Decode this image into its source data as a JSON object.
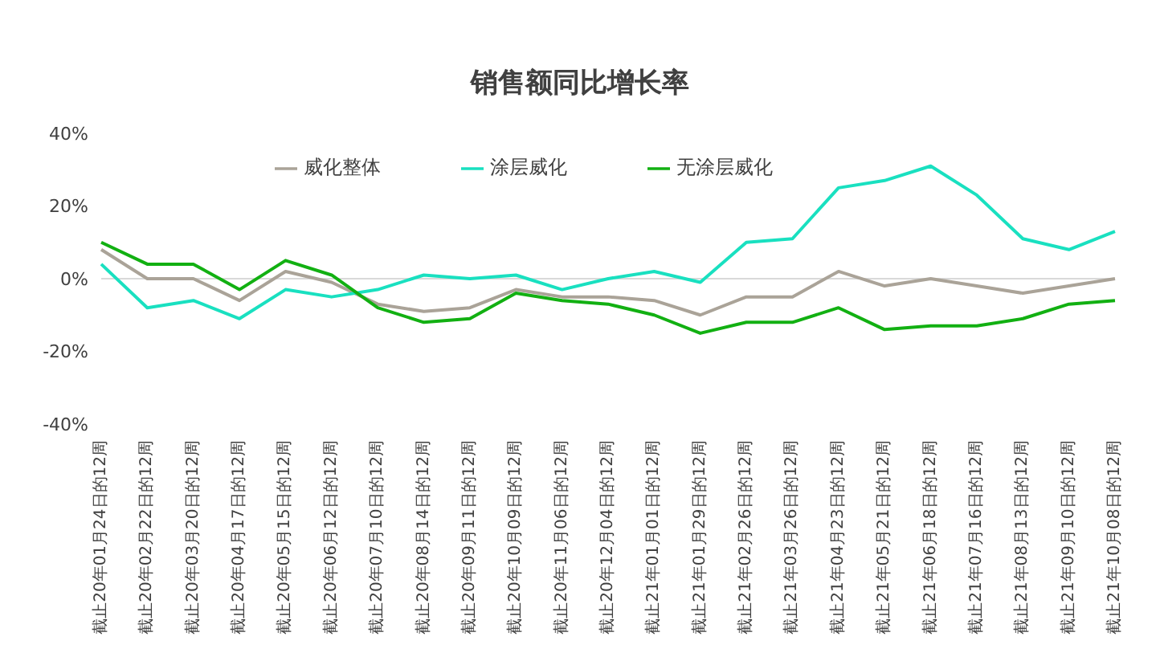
{
  "chart_data": {
    "type": "line",
    "title": "销售额同比增长率",
    "categories": [
      "截止20年01月24日的12周",
      "截止20年02月22日的12周",
      "截止20年03月20日的12周",
      "截止20年04月17日的12周",
      "截止20年05月15日的12周",
      "截止20年06月12日的12周",
      "截止20年07月10日的12周",
      "截止20年08月14日的12周",
      "截止20年09月11日的12周",
      "截止20年10月09日的12周",
      "截止20年11月06日的12周",
      "截止20年12月04日的12周",
      "截止21年01月01日的12周",
      "截止21年01月29日的12周",
      "截止21年02月26日的12周",
      "截止21年03月26日的12周",
      "截止21年04月23日的12周",
      "截止21年05月21日的12周",
      "截止21年06月18日的12周",
      "截止21年07月16日的12周",
      "截止21年08月13日的12周",
      "截止21年09月10日的12周",
      "截止21年10月08日的12周"
    ],
    "series": [
      {
        "name": "威化整体",
        "color": "#aaa398",
        "values": [
          8,
          0,
          0,
          -6,
          2,
          -1,
          -7,
          -9,
          -8,
          -3,
          -5,
          -5,
          -6,
          -10,
          -5,
          -5,
          2,
          -2,
          0,
          -2,
          -4,
          -2,
          0
        ]
      },
      {
        "name": "涂层威化",
        "color": "#19e0c0",
        "values": [
          4,
          -8,
          -6,
          -11,
          -3,
          -5,
          -3,
          1,
          0,
          1,
          -3,
          0,
          2,
          -1,
          10,
          11,
          25,
          27,
          31,
          23,
          11,
          8,
          13
        ]
      },
      {
        "name": "无涂层威化",
        "color": "#12b012",
        "values": [
          10,
          4,
          4,
          -3,
          5,
          1,
          -8,
          -12,
          -11,
          -4,
          -6,
          -7,
          -10,
          -15,
          -12,
          -12,
          -8,
          -14,
          -13,
          -13,
          -11,
          -7,
          -6
        ]
      }
    ],
    "ylim": [
      -40,
      40
    ],
    "yticks": [
      {
        "value": -40,
        "label": "-40%"
      },
      {
        "value": -20,
        "label": "-20%"
      },
      {
        "value": 0,
        "label": "0%"
      },
      {
        "value": 20,
        "label": "20%"
      },
      {
        "value": 40,
        "label": "40%"
      }
    ],
    "ref_lines": [
      {
        "axis": "y",
        "value": 0,
        "color": "#d9d9d9"
      }
    ],
    "grid": false,
    "legend": "top",
    "marker": "none",
    "line_style": "solid"
  }
}
